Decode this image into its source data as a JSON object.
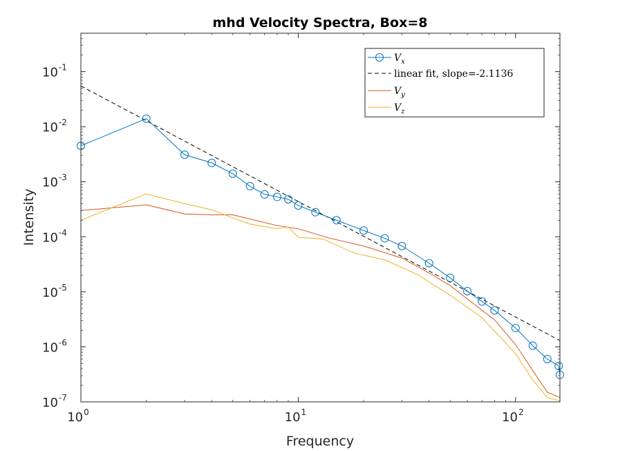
{
  "chart_data": {
    "type": "line",
    "title": "mhd Velocity Spectra, Box=8",
    "xlabel": "Frequency",
    "ylabel": "Intensity",
    "xscale": "log",
    "yscale": "log",
    "xlim": [
      1,
      160
    ],
    "ylim": [
      1e-07,
      0.5
    ],
    "xticks": [
      {
        "value": 1,
        "base": "10",
        "exp": "0"
      },
      {
        "value": 10,
        "base": "10",
        "exp": "1"
      },
      {
        "value": 100,
        "base": "10",
        "exp": "2"
      }
    ],
    "yticks": [
      {
        "value": 1e-07,
        "base": "10",
        "exp": "-7"
      },
      {
        "value": 1e-06,
        "base": "10",
        "exp": "-6"
      },
      {
        "value": 1e-05,
        "base": "10",
        "exp": "-5"
      },
      {
        "value": 0.0001,
        "base": "10",
        "exp": "-4"
      },
      {
        "value": 0.001,
        "base": "10",
        "exp": "-3"
      },
      {
        "value": 0.01,
        "base": "10",
        "exp": "-2"
      },
      {
        "value": 0.1,
        "base": "10",
        "exp": "-1"
      }
    ],
    "legend_position": "top-right",
    "series": [
      {
        "name": "V_x",
        "legend_main": "V",
        "legend_sub": "x",
        "color": "#0072BD",
        "style": "line-circle",
        "points": [
          [
            1,
            0.0045
          ],
          [
            2,
            0.014
          ],
          [
            3,
            0.0031
          ],
          [
            4,
            0.0022
          ],
          [
            5,
            0.0014
          ],
          [
            6,
            0.00083
          ],
          [
            7,
            0.00059
          ],
          [
            8,
            0.00053
          ],
          [
            9,
            0.00048
          ],
          [
            10,
            0.00037
          ],
          [
            12,
            0.00028
          ],
          [
            15,
            0.0002
          ],
          [
            20,
            0.00013
          ],
          [
            25,
            9.4e-05
          ],
          [
            30,
            6.8e-05
          ],
          [
            40,
            3.3e-05
          ],
          [
            50,
            1.8e-05
          ],
          [
            60,
            1.03e-05
          ],
          [
            70,
            6.7e-06
          ],
          [
            80,
            4.6e-06
          ],
          [
            100,
            2.2e-06
          ],
          [
            120,
            1.05e-06
          ],
          [
            140,
            6e-07
          ],
          [
            158,
            4.5e-07
          ],
          [
            160,
            3.1e-07
          ]
        ]
      },
      {
        "name": "linear fit, slope=-2.1136",
        "legend_main": "linear fit, slope=-2.1136",
        "color": "#000000",
        "style": "dashed",
        "points": [
          [
            1,
            0.055
          ],
          [
            160,
            1.3e-06
          ]
        ]
      },
      {
        "name": "V_y",
        "legend_main": "V",
        "legend_sub": "y",
        "color": "#D95319",
        "style": "line",
        "points": [
          [
            1,
            0.0003
          ],
          [
            2,
            0.00038
          ],
          [
            3,
            0.00026
          ],
          [
            4,
            0.00025
          ],
          [
            5,
            0.00025
          ],
          [
            6,
            0.00021
          ],
          [
            8,
            0.00016
          ],
          [
            10,
            0.00014
          ],
          [
            14,
            9.4e-05
          ],
          [
            20,
            6.8e-05
          ],
          [
            30,
            4.1e-05
          ],
          [
            40,
            2.2e-05
          ],
          [
            50,
            1.3e-05
          ],
          [
            60,
            7.4e-06
          ],
          [
            80,
            3.1e-06
          ],
          [
            100,
            1.1e-06
          ],
          [
            120,
            3.7e-07
          ],
          [
            140,
            1.5e-07
          ],
          [
            160,
            1.2e-07
          ]
        ]
      },
      {
        "name": "V_z",
        "legend_main": "V",
        "legend_sub": "z",
        "color": "#EDB120",
        "style": "line",
        "points": [
          [
            1,
            0.0002
          ],
          [
            2,
            0.0006
          ],
          [
            3,
            0.0004
          ],
          [
            4,
            0.00031
          ],
          [
            5,
            0.00022
          ],
          [
            6,
            0.00017
          ],
          [
            8,
            0.00014
          ],
          [
            9,
            0.00015
          ],
          [
            10,
            9.8e-05
          ],
          [
            13,
            9.1e-05
          ],
          [
            18,
            5.1e-05
          ],
          [
            25,
            3.8e-05
          ],
          [
            35,
            2.1e-05
          ],
          [
            50,
            8.7e-06
          ],
          [
            70,
            3.4e-06
          ],
          [
            100,
            7.5e-07
          ],
          [
            120,
            2.5e-07
          ],
          [
            140,
            1.2e-07
          ],
          [
            160,
            1.05e-07
          ]
        ]
      }
    ]
  }
}
